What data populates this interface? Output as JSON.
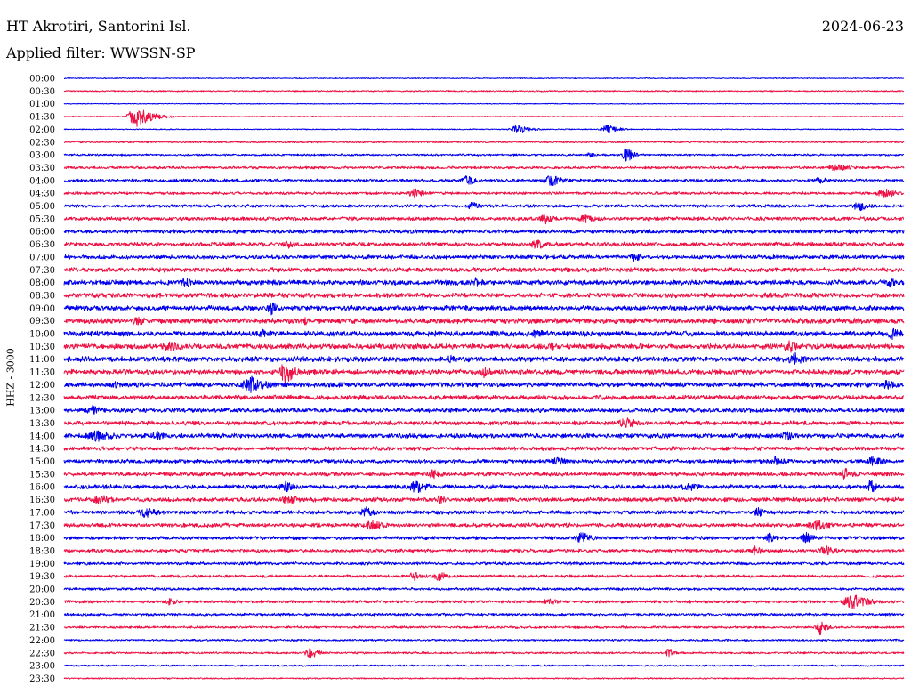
{
  "header": {
    "station": "HT Akrotiri, Santorini Isl.",
    "date": "2024-06-23",
    "filter": "Applied filter: WWSSN-SP"
  },
  "chart_data": {
    "type": "line",
    "title": "HT Akrotiri, Santorini Isl.",
    "subtitle": "Applied filter: WWSSN-SP",
    "date": "2024-06-23",
    "ylabel": "HHZ - 3000",
    "xlabel": "",
    "row_interval_minutes": 30,
    "rows": [
      "00:00",
      "00:30",
      "01:00",
      "01:30",
      "02:00",
      "02:30",
      "03:00",
      "03:30",
      "04:00",
      "04:30",
      "05:00",
      "05:30",
      "06:00",
      "06:30",
      "07:00",
      "07:30",
      "08:00",
      "08:30",
      "09:00",
      "09:30",
      "10:00",
      "10:30",
      "11:00",
      "11:30",
      "12:00",
      "12:30",
      "13:00",
      "13:30",
      "14:00",
      "14:30",
      "15:00",
      "15:30",
      "16:00",
      "16:30",
      "17:00",
      "17:30",
      "18:00",
      "18:30",
      "19:00",
      "19:30",
      "20:00",
      "20:30",
      "21:00",
      "21:30",
      "22:00",
      "22:30",
      "23:00",
      "23:30"
    ],
    "colors": [
      "#0000ee",
      "#ee1144"
    ],
    "noise_level": [
      0.6,
      0.8,
      0.5,
      0.6,
      0.6,
      1.0,
      1.2,
      1.6,
      1.8,
      1.6,
      1.9,
      2.2,
      2.4,
      2.5,
      2.4,
      2.8,
      3.0,
      3.0,
      3.0,
      3.2,
      3.2,
      3.2,
      3.2,
      3.0,
      3.0,
      2.8,
      2.6,
      2.6,
      2.8,
      2.4,
      2.4,
      2.4,
      2.6,
      2.6,
      2.4,
      2.4,
      2.2,
      2.0,
      1.8,
      1.8,
      1.6,
      1.8,
      1.6,
      1.4,
      1.2,
      1.2,
      1.0,
      0.8
    ],
    "events": [
      {
        "row": 3,
        "minute": 2.6,
        "amp": 12,
        "dur": 1.4
      },
      {
        "row": 4,
        "minute": 19.4,
        "amp": 6,
        "dur": 1.0
      },
      {
        "row": 4,
        "minute": 16.2,
        "amp": 5,
        "dur": 1.2
      },
      {
        "row": 6,
        "minute": 20.1,
        "amp": 11,
        "dur": 0.6
      },
      {
        "row": 6,
        "minute": 18.8,
        "amp": 5,
        "dur": 0.5
      },
      {
        "row": 7,
        "minute": 27.6,
        "amp": 5,
        "dur": 1.4
      },
      {
        "row": 8,
        "minute": 17.4,
        "amp": 7,
        "dur": 1.2
      },
      {
        "row": 8,
        "minute": 14.4,
        "amp": 6,
        "dur": 1.0
      },
      {
        "row": 8,
        "minute": 27.0,
        "amp": 5,
        "dur": 0.8
      },
      {
        "row": 9,
        "minute": 12.5,
        "amp": 6,
        "dur": 1.0
      },
      {
        "row": 9,
        "minute": 29.3,
        "amp": 6,
        "dur": 1.2
      },
      {
        "row": 10,
        "minute": 14.6,
        "amp": 5,
        "dur": 1.0
      },
      {
        "row": 10,
        "minute": 28.4,
        "amp": 6,
        "dur": 1.2
      },
      {
        "row": 11,
        "minute": 17.2,
        "amp": 6,
        "dur": 1.0
      },
      {
        "row": 11,
        "minute": 18.6,
        "amp": 6,
        "dur": 1.2
      },
      {
        "row": 13,
        "minute": 8.0,
        "amp": 5,
        "dur": 1.0
      },
      {
        "row": 13,
        "minute": 16.9,
        "amp": 6,
        "dur": 1.2
      },
      {
        "row": 14,
        "minute": 20.4,
        "amp": 6,
        "dur": 0.8
      },
      {
        "row": 16,
        "minute": 4.3,
        "amp": 7,
        "dur": 1.0
      },
      {
        "row": 16,
        "minute": 14.7,
        "amp": 6,
        "dur": 1.0
      },
      {
        "row": 16,
        "minute": 29.5,
        "amp": 6,
        "dur": 1.0
      },
      {
        "row": 18,
        "minute": 7.4,
        "amp": 8,
        "dur": 0.8
      },
      {
        "row": 19,
        "minute": 2.6,
        "amp": 6,
        "dur": 1.2
      },
      {
        "row": 19,
        "minute": 8.6,
        "amp": 5,
        "dur": 0.8
      },
      {
        "row": 20,
        "minute": 7.1,
        "amp": 5,
        "dur": 1.0
      },
      {
        "row": 20,
        "minute": 16.9,
        "amp": 6,
        "dur": 1.0
      },
      {
        "row": 20,
        "minute": 29.6,
        "amp": 7,
        "dur": 1.2
      },
      {
        "row": 21,
        "minute": 3.8,
        "amp": 6,
        "dur": 1.6
      },
      {
        "row": 21,
        "minute": 25.9,
        "amp": 9,
        "dur": 0.8
      },
      {
        "row": 21,
        "minute": 17.4,
        "amp": 5,
        "dur": 1.0
      },
      {
        "row": 22,
        "minute": 26.1,
        "amp": 8,
        "dur": 1.2
      },
      {
        "row": 22,
        "minute": 13.8,
        "amp": 5,
        "dur": 1.0
      },
      {
        "row": 23,
        "minute": 7.9,
        "amp": 20,
        "dur": 0.7
      },
      {
        "row": 23,
        "minute": 15.0,
        "amp": 7,
        "dur": 1.0
      },
      {
        "row": 24,
        "minute": 6.7,
        "amp": 10,
        "dur": 1.6
      },
      {
        "row": 24,
        "minute": 1.8,
        "amp": 5,
        "dur": 1.0
      },
      {
        "row": 24,
        "minute": 29.4,
        "amp": 6,
        "dur": 1.2
      },
      {
        "row": 26,
        "minute": 1.0,
        "amp": 6,
        "dur": 1.0
      },
      {
        "row": 27,
        "minute": 20.1,
        "amp": 7,
        "dur": 1.4
      },
      {
        "row": 28,
        "minute": 1.2,
        "amp": 7,
        "dur": 2.0
      },
      {
        "row": 28,
        "minute": 3.3,
        "amp": 6,
        "dur": 1.0
      },
      {
        "row": 28,
        "minute": 25.8,
        "amp": 6,
        "dur": 1.0
      },
      {
        "row": 30,
        "minute": 17.6,
        "amp": 5,
        "dur": 1.4
      },
      {
        "row": 30,
        "minute": 25.4,
        "amp": 6,
        "dur": 1.2
      },
      {
        "row": 30,
        "minute": 28.9,
        "amp": 6,
        "dur": 1.2
      },
      {
        "row": 31,
        "minute": 13.2,
        "amp": 6,
        "dur": 1.0
      },
      {
        "row": 31,
        "minute": 27.9,
        "amp": 7,
        "dur": 1.0
      },
      {
        "row": 32,
        "minute": 7.9,
        "amp": 7,
        "dur": 1.0
      },
      {
        "row": 32,
        "minute": 12.6,
        "amp": 8,
        "dur": 1.2
      },
      {
        "row": 32,
        "minute": 22.3,
        "amp": 6,
        "dur": 1.2
      },
      {
        "row": 32,
        "minute": 28.8,
        "amp": 9,
        "dur": 0.6
      },
      {
        "row": 33,
        "minute": 1.3,
        "amp": 7,
        "dur": 1.2
      },
      {
        "row": 33,
        "minute": 8.0,
        "amp": 7,
        "dur": 1.2
      },
      {
        "row": 33,
        "minute": 13.4,
        "amp": 6,
        "dur": 0.8
      },
      {
        "row": 34,
        "minute": 2.9,
        "amp": 7,
        "dur": 1.2
      },
      {
        "row": 34,
        "minute": 10.8,
        "amp": 7,
        "dur": 1.0
      },
      {
        "row": 34,
        "minute": 24.8,
        "amp": 6,
        "dur": 0.8
      },
      {
        "row": 35,
        "minute": 11.0,
        "amp": 6,
        "dur": 1.4
      },
      {
        "row": 35,
        "minute": 26.9,
        "amp": 6,
        "dur": 1.6
      },
      {
        "row": 36,
        "minute": 18.5,
        "amp": 7,
        "dur": 1.2
      },
      {
        "row": 36,
        "minute": 26.5,
        "amp": 7,
        "dur": 0.8
      },
      {
        "row": 36,
        "minute": 25.2,
        "amp": 7,
        "dur": 0.6
      },
      {
        "row": 37,
        "minute": 27.2,
        "amp": 6,
        "dur": 1.2
      },
      {
        "row": 37,
        "minute": 24.7,
        "amp": 6,
        "dur": 0.8
      },
      {
        "row": 39,
        "minute": 12.5,
        "amp": 6,
        "dur": 0.8
      },
      {
        "row": 39,
        "minute": 13.4,
        "amp": 6,
        "dur": 1.0
      },
      {
        "row": 41,
        "minute": 28.2,
        "amp": 9,
        "dur": 1.6
      },
      {
        "row": 41,
        "minute": 17.3,
        "amp": 5,
        "dur": 1.0
      },
      {
        "row": 41,
        "minute": 3.8,
        "amp": 5,
        "dur": 0.8
      },
      {
        "row": 43,
        "minute": 27.0,
        "amp": 10,
        "dur": 0.6
      },
      {
        "row": 45,
        "minute": 8.8,
        "amp": 7,
        "dur": 0.8
      },
      {
        "row": 45,
        "minute": 21.6,
        "amp": 6,
        "dur": 0.6
      }
    ]
  }
}
